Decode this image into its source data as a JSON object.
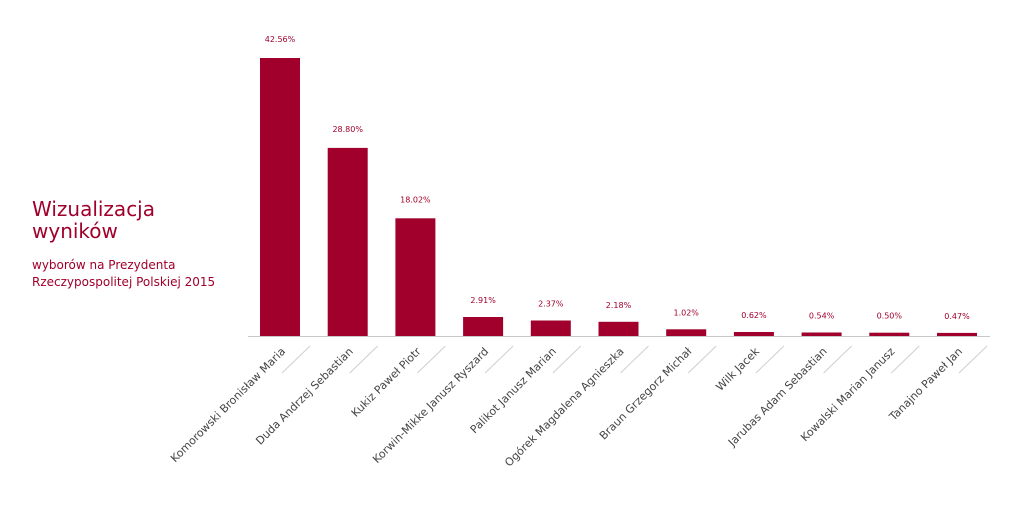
{
  "heading": {
    "title_line1": "Wizualizacja",
    "title_line2": "wyników",
    "subtitle_line1": "wyborów na Prezydenta",
    "subtitle_line2": "Rzeczypospolitej Polskiej 2015"
  },
  "colors": {
    "bar": "#a0002b",
    "axis": "#c8c8c8",
    "label_text": "#444444",
    "title": "#a0002b"
  },
  "chart_data": {
    "type": "bar",
    "title": "",
    "xlabel": "",
    "ylabel": "",
    "ylim": [
      0,
      45
    ],
    "grid": false,
    "categories": [
      "Komorowski Bronisław Maria",
      "Duda Andrzej Sebastian",
      "Kukiz Paweł Piotr",
      "Korwin-Mikke Janusz Ryszard",
      "Palikot Janusz Marian",
      "Ogórek Magdalena Agnieszka",
      "Braun Grzegorz Michał",
      "Wilk Jacek",
      "Jarubas Adam Sebastian",
      "Kowalski Marian Janusz",
      "Tanajno Paweł Jan"
    ],
    "values": [
      42.56,
      28.8,
      18.02,
      2.91,
      2.37,
      2.18,
      1.02,
      0.62,
      0.54,
      0.5,
      0.47
    ],
    "value_labels": [
      "42.56%",
      "28.80%",
      "18.02%",
      "2.91%",
      "2.37%",
      "2.18%",
      "1.02%",
      "0.62%",
      "0.54%",
      "0.50%",
      "0.47%"
    ]
  }
}
